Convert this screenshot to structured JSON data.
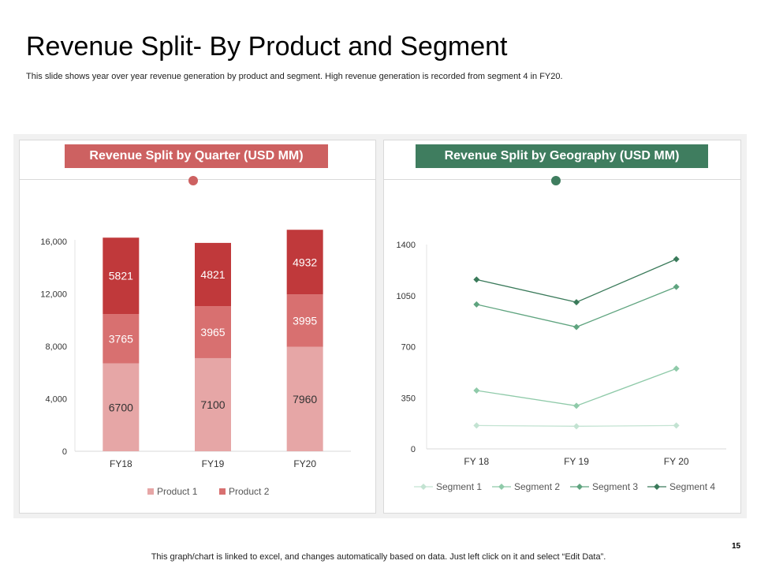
{
  "slide": {
    "title": "Revenue Split- By Product and Segment",
    "subtitle": "This slide shows year over year revenue  generation by product and segment. High revenue  generation is recorded from segment 4 in FY20.",
    "footer": "This graph/chart is linked to excel, and changes automatically based on data. Just left click on it and select “Edit Data”.",
    "page_number": "15"
  },
  "colors": {
    "product1": "#e6a6a6",
    "product2_dark": "#c0393b",
    "product2_mid": "#d87070",
    "red_accent": "#cd6161",
    "green_accent": "#3f7d5f",
    "segment1": "#c3e3d2",
    "segment2": "#8fcaa9",
    "segment3": "#5fa47f",
    "segment4": "#3a7a5a"
  },
  "chart_data": [
    {
      "type": "bar",
      "stacked": true,
      "title": "Revenue Split by Quarter (USD MM)",
      "categories": [
        "FY18",
        "FY19",
        "FY20"
      ],
      "series": [
        {
          "name": "Product 1",
          "values": [
            6700,
            7100,
            7960
          ]
        },
        {
          "name": "",
          "values": [
            3765,
            3965,
            3995
          ]
        },
        {
          "name": "Product 2",
          "values": [
            5821,
            4821,
            4932
          ]
        }
      ],
      "legend": [
        "Product 1",
        "Product 2"
      ],
      "ylim": [
        0,
        16000
      ],
      "yticks": [
        "0",
        "4,000",
        "8,000",
        "12,000",
        "16,000"
      ],
      "legend_position": "bottom",
      "xlabel": "",
      "ylabel": ""
    },
    {
      "type": "line",
      "title": "Revenue Split by Geography (USD MM)",
      "categories": [
        "FY 18",
        "FY 19",
        "FY 20"
      ],
      "series": [
        {
          "name": "Segment 1",
          "values": [
            160,
            155,
            160
          ]
        },
        {
          "name": "Segment 2",
          "values": [
            400,
            295,
            550
          ]
        },
        {
          "name": "Segment 3",
          "values": [
            990,
            835,
            1110
          ]
        },
        {
          "name": "Segment 4",
          "values": [
            1160,
            1005,
            1300
          ]
        }
      ],
      "ylim": [
        0,
        1400
      ],
      "yticks": [
        "0",
        "350",
        "700",
        "1050",
        "1400"
      ],
      "legend_position": "bottom",
      "xlabel": "",
      "ylabel": ""
    }
  ]
}
